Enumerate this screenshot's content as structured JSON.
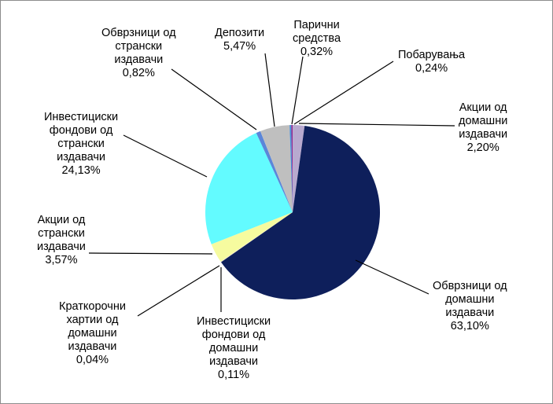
{
  "chart_data": {
    "type": "pie",
    "title": "",
    "start_angle_deg": 0,
    "direction": "clockwise",
    "slices": [
      {
        "label": "Акции од домашни издавачи",
        "label_lines": [
          "Акции од",
          "домашни",
          "издавачи"
        ],
        "value": 2.2,
        "value_text": "2,20%",
        "color": "#b8a9cf"
      },
      {
        "label": "Обврзници од домашни издавачи",
        "label_lines": [
          "Обврзници од",
          "домашни",
          "издавачи"
        ],
        "value": 63.1,
        "value_text": "63,10%",
        "color": "#0e1f5b"
      },
      {
        "label": "Инвестициски фондови од домашни издавачи",
        "label_lines": [
          "Инвестициски",
          "фондови од",
          "домашни",
          "издавачи"
        ],
        "value": 0.11,
        "value_text": "0,11%",
        "color": "#ece3c9"
      },
      {
        "label": "Краткорочни хартии од домашни издавачи",
        "label_lines": [
          "Краткорочни",
          "хартии од",
          "домашни",
          "издавачи"
        ],
        "value": 0.04,
        "value_text": "0,04%",
        "color": "#f4f0a8"
      },
      {
        "label": "Акции од странски издавачи",
        "label_lines": [
          "Акции од",
          "странски",
          "издавачи"
        ],
        "value": 3.57,
        "value_text": "3,57%",
        "color": "#f6fb9f"
      },
      {
        "label": "Инвестициски фондови од странски издавачи",
        "label_lines": [
          "Инвестициски",
          "фондови од",
          "странски",
          "издавачи"
        ],
        "value": 24.13,
        "value_text": "24,13%",
        "color": "#63fbff"
      },
      {
        "label": "Обврзници од странски издавачи",
        "label_lines": [
          "Обврзници од",
          "странски",
          "издавачи"
        ],
        "value": 0.82,
        "value_text": "0,82%",
        "color": "#5b86d9"
      },
      {
        "label": "Депозити",
        "label_lines": [
          "Депозити"
        ],
        "value": 5.47,
        "value_text": "5,47%",
        "color": "#bfbfbf"
      },
      {
        "label": "Парични средства",
        "label_lines": [
          "Парични",
          "средства"
        ],
        "value": 0.32,
        "value_text": "0,32%",
        "color": "#4a90d9"
      },
      {
        "label": "Побарувања",
        "label_lines": [
          "Побарувања"
        ],
        "value": 0.24,
        "value_text": "0,24%",
        "color": "#9b2d8f"
      }
    ]
  }
}
